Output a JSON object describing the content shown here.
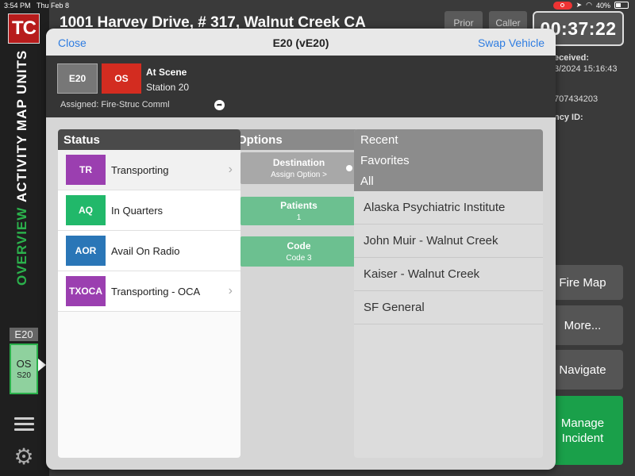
{
  "statusbar": {
    "time": "3:54 PM",
    "date": "Thu Feb 8",
    "battery": "40%"
  },
  "sidebar": {
    "logo": "TC",
    "nav": [
      "MAP UNITS",
      "ACTIVITY",
      "OVERVIEW"
    ],
    "unit_label": "E20",
    "unit_status": "OS",
    "unit_station": "S20"
  },
  "incident": {
    "address": "1001 Harvey Drive, # 317, Walnut Creek CA",
    "prior_label": "Prior",
    "caller_label": "Caller",
    "timer": "00:37:22",
    "info": [
      "eceived:",
      "3/2024 15:16:43",
      "707434203",
      "ncy ID:"
    ],
    "buttons": [
      "Fire Map",
      "More...",
      "Navigate",
      "Manage",
      "Incident"
    ]
  },
  "modal": {
    "close_label": "Close",
    "title": "E20 (vE20)",
    "swap_label": "Swap Vehicle",
    "unit_chip": "E20",
    "status_chip": "OS",
    "status_text": "At Scene",
    "station": "Station 20",
    "assigned": "Assigned: Fire-Struc Comml",
    "status_panel": {
      "header": "Status",
      "rows": [
        {
          "code": "TR",
          "label": "Transporting"
        },
        {
          "code": "AQ",
          "label": "In Quarters"
        },
        {
          "code": "AOR",
          "label": "Avail On Radio"
        },
        {
          "code": "TXOCA",
          "label": "Transporting - OCA"
        }
      ]
    },
    "options_panel": {
      "header": "Options",
      "destination_label": "Destination",
      "destination_value": "Assign Option >",
      "patients_label": "Patients",
      "patients_value": "1",
      "code_label": "Code",
      "code_value": "Code 3"
    },
    "recent_panel": {
      "tabs": [
        "Recent",
        "Favorites",
        "All"
      ],
      "destinations": [
        "Alaska Psychiatric Institute",
        "John Muir - Walnut Creek",
        "Kaiser - Walnut Creek",
        "SF General"
      ]
    }
  },
  "colors": {
    "accent_link": "#2f7de1",
    "overview_active": "#2bb24c",
    "status_os": "#d32c20",
    "manage_incident": "#1aa04a",
    "badge_purple": "#9b3fb0",
    "badge_green": "#21b86a",
    "badge_blue": "#2a76b7"
  }
}
